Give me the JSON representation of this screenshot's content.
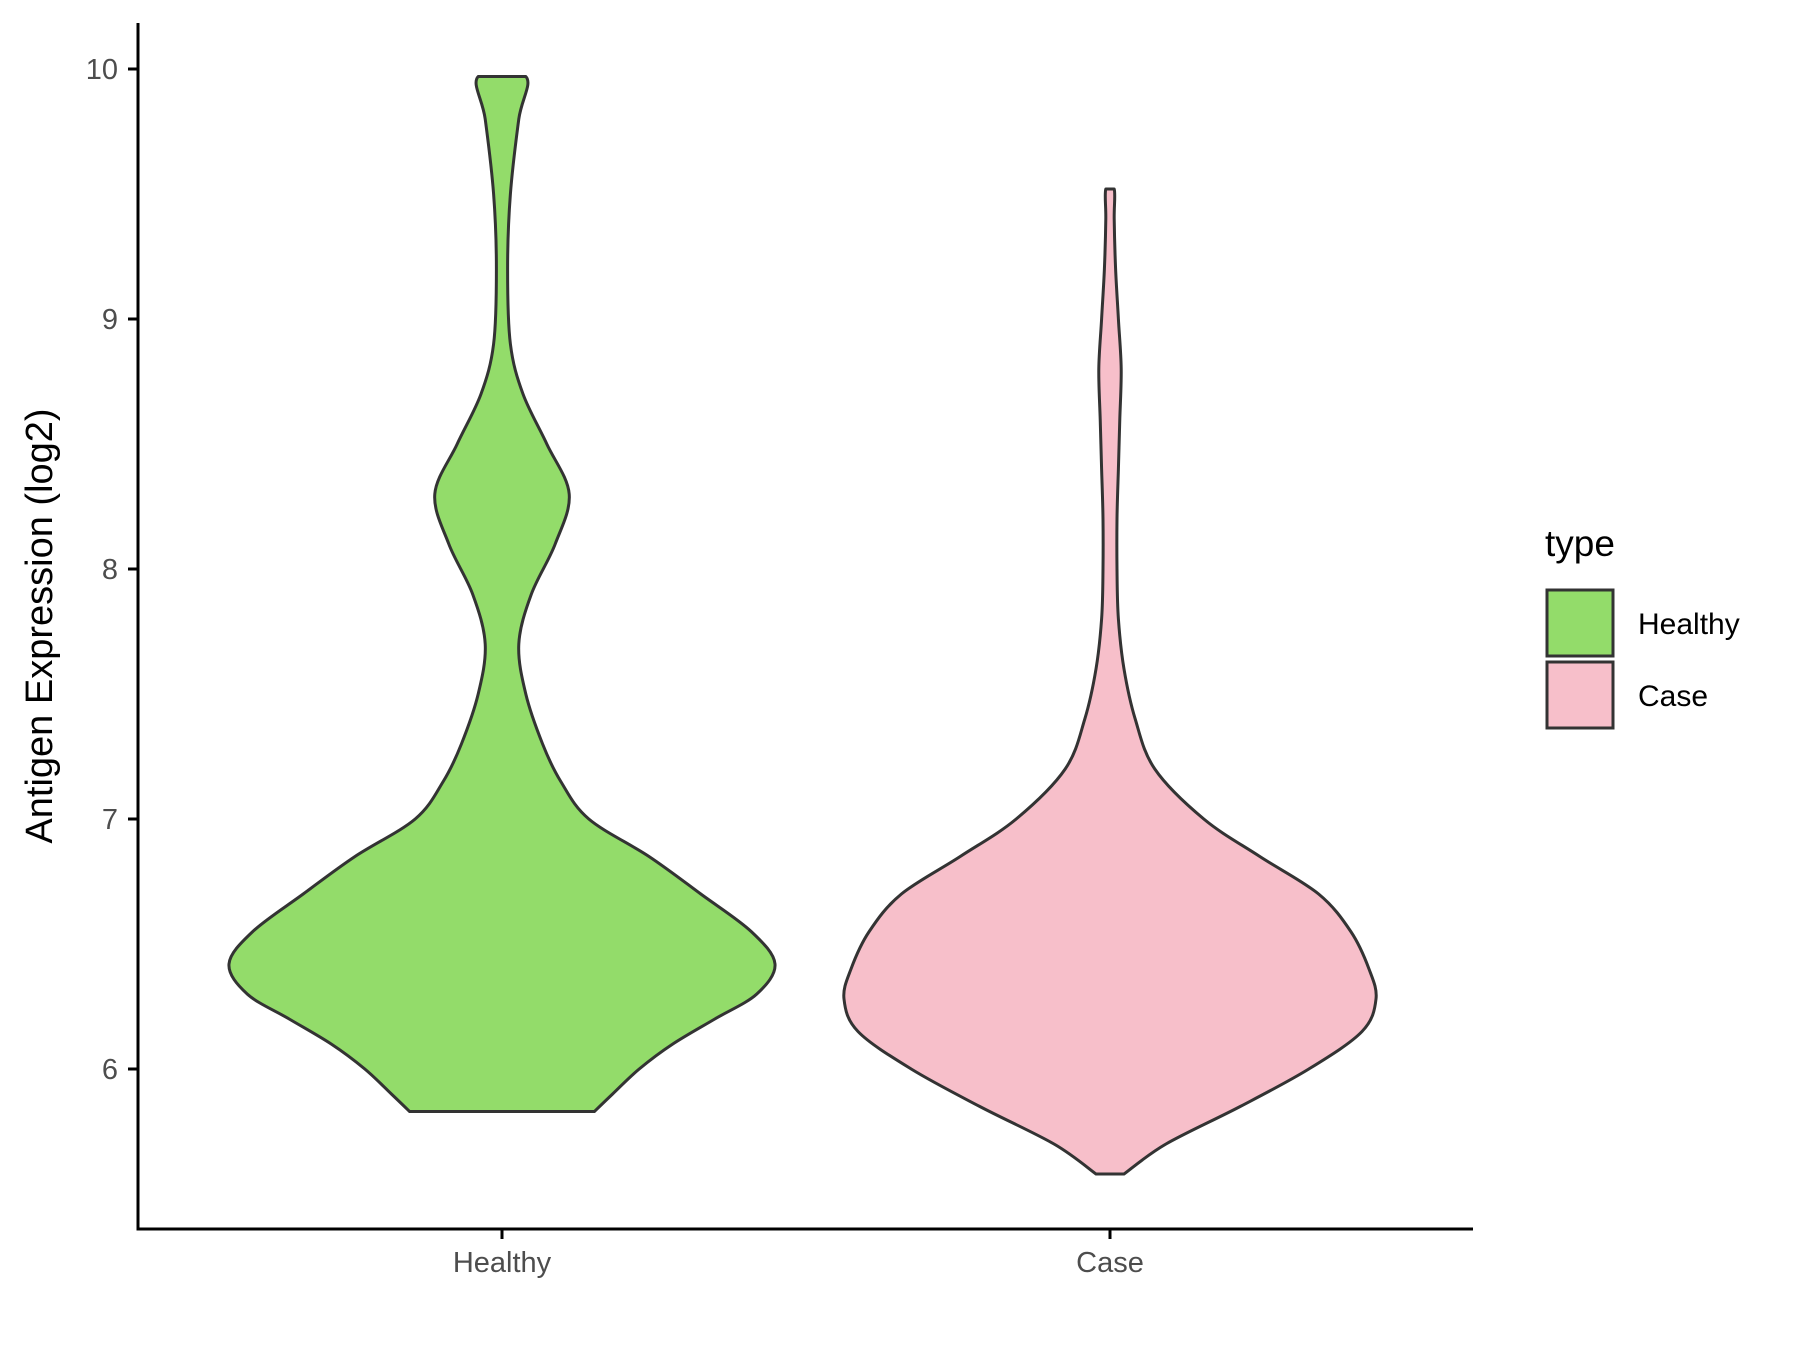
{
  "chart_data": {
    "type": "violin",
    "xlabel": "",
    "ylabel": "Antigen Expression (log2)",
    "ylim": [
      5.4,
      10.2
    ],
    "yticks": [
      6,
      7,
      8,
      9,
      10
    ],
    "categories": [
      "Healthy",
      "Case"
    ],
    "grid": false,
    "legend": {
      "title": "type",
      "position": "right",
      "entries": [
        {
          "label": "Healthy",
          "color": "#93dc6a"
        },
        {
          "label": "Case",
          "color": "#f7bfca"
        }
      ]
    },
    "series": [
      {
        "category": "Healthy",
        "color": "#93dc6a",
        "min": 5.83,
        "max": 9.97,
        "density": [
          [
            5.83,
            0.66
          ],
          [
            5.9,
            0.79
          ],
          [
            6.0,
            0.98
          ],
          [
            6.1,
            1.22
          ],
          [
            6.2,
            1.52
          ],
          [
            6.3,
            1.82
          ],
          [
            6.42,
            1.95
          ],
          [
            6.55,
            1.78
          ],
          [
            6.7,
            1.42
          ],
          [
            6.85,
            1.05
          ],
          [
            7.0,
            0.62
          ],
          [
            7.15,
            0.42
          ],
          [
            7.3,
            0.29
          ],
          [
            7.5,
            0.17
          ],
          [
            7.7,
            0.12
          ],
          [
            7.9,
            0.21
          ],
          [
            8.1,
            0.38
          ],
          [
            8.3,
            0.48
          ],
          [
            8.5,
            0.32
          ],
          [
            8.7,
            0.15
          ],
          [
            8.9,
            0.06
          ],
          [
            9.2,
            0.04
          ],
          [
            9.5,
            0.06
          ],
          [
            9.8,
            0.12
          ],
          [
            9.97,
            0.17
          ]
        ]
      },
      {
        "category": "Case",
        "color": "#f7bfca",
        "min": 5.58,
        "max": 9.52,
        "density": [
          [
            5.58,
            0.1
          ],
          [
            5.7,
            0.4
          ],
          [
            5.85,
            0.93
          ],
          [
            6.0,
            1.42
          ],
          [
            6.15,
            1.8
          ],
          [
            6.28,
            1.9
          ],
          [
            6.4,
            1.85
          ],
          [
            6.55,
            1.72
          ],
          [
            6.7,
            1.49
          ],
          [
            6.85,
            1.07
          ],
          [
            7.0,
            0.67
          ],
          [
            7.2,
            0.32
          ],
          [
            7.4,
            0.18
          ],
          [
            7.6,
            0.1
          ],
          [
            7.8,
            0.06
          ],
          [
            8.0,
            0.05
          ],
          [
            8.2,
            0.05
          ],
          [
            8.4,
            0.06
          ],
          [
            8.6,
            0.07
          ],
          [
            8.8,
            0.08
          ],
          [
            9.0,
            0.06
          ],
          [
            9.2,
            0.04
          ],
          [
            9.4,
            0.03
          ],
          [
            9.52,
            0.03
          ]
        ]
      }
    ]
  }
}
